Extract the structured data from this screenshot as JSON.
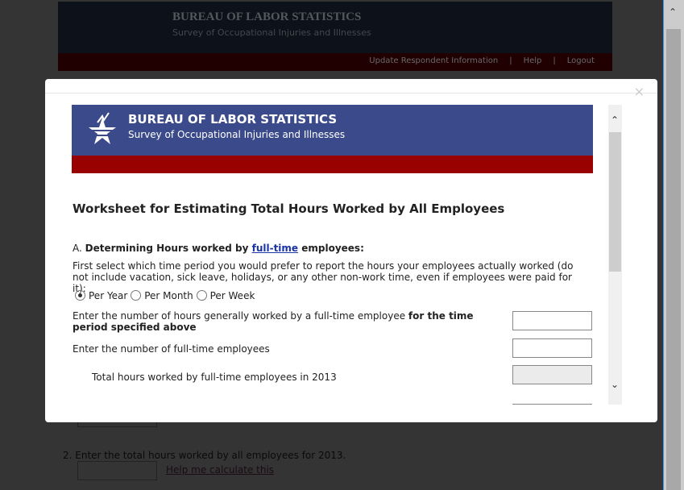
{
  "background": {
    "org": "BUREAU OF LABOR STATISTICS",
    "survey": "Survey of Occupational Injuries and Illnesses",
    "nav": [
      "Update Respondent Information",
      "Help",
      "Logout"
    ],
    "question2": "2.  Enter the total hours worked by all employees for 2013.",
    "help_link": "Help me calculate this"
  },
  "modal": {
    "close": "×",
    "org": "BUREAU OF LABOR STATISTICS",
    "survey": "Survey of Occupational Injuries and Illnesses",
    "title": "Worksheet for Estimating Total Hours Worked by All Employees",
    "section_a": {
      "prefix": "A.  ",
      "label_start": "Determining Hours worked by ",
      "link": "full-time",
      "label_end": " employees:"
    },
    "instructions": "First select which time period you would prefer to report the hours your employees actually worked (do not include vacation, sick leave, holidays, or any other non-work time, even if employees were paid for it):",
    "periods": [
      {
        "label": "Per Year",
        "selected": true
      },
      {
        "label": "Per Month",
        "selected": false
      },
      {
        "label": "Per Week",
        "selected": false
      }
    ],
    "hours_label_start": "Enter the number of hours generally worked by a full-time employee ",
    "hours_label_bold": "for the time period specified above",
    "employees_label": "Enter the number of full-time employees",
    "total_label": "Total hours worked by full-time employees in 2013"
  },
  "colors": {
    "header": "#3b4a8a",
    "band": "#990000"
  }
}
